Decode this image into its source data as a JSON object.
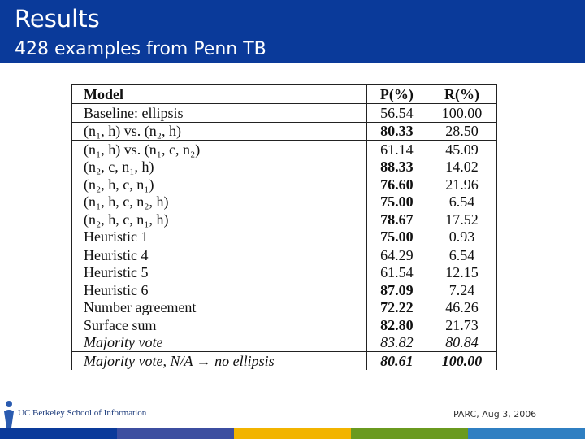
{
  "header": {
    "title": "Results",
    "subtitle": "428 examples from Penn TB"
  },
  "table": {
    "columns": [
      "Model",
      "P(%)",
      "R(%)"
    ],
    "rows": [
      {
        "cells": [
          "Baseline: ellipsis",
          "56.54",
          "100.00"
        ],
        "bold": [],
        "italic": false
      },
      {
        "cells": [
          "(n₁, h) vs. (n₂, h)",
          "80.33",
          "28.50"
        ],
        "bold": [
          1
        ],
        "italic": false
      },
      {
        "cells": [
          "(n₁, h) vs. (n₁, c, n₂)",
          "61.14",
          "45.09"
        ],
        "bold": [],
        "italic": false
      },
      {
        "cells": [
          "(n₂, c, n₁, h)",
          "88.33",
          "14.02"
        ],
        "bold": [
          1
        ],
        "italic": false
      },
      {
        "cells": [
          "(n₂, h, c, n₁)",
          "76.60",
          "21.96"
        ],
        "bold": [
          1
        ],
        "italic": false
      },
      {
        "cells": [
          "(n₁, h, c, n₂, h)",
          "75.00",
          "6.54"
        ],
        "bold": [
          1
        ],
        "italic": false
      },
      {
        "cells": [
          "(n₂, h, c, n₁, h)",
          "78.67",
          "17.52"
        ],
        "bold": [
          1
        ],
        "italic": false
      },
      {
        "cells": [
          "Heuristic 1",
          "75.00",
          "0.93"
        ],
        "bold": [
          1
        ],
        "italic": false
      },
      {
        "cells": [
          "Heuristic 4",
          "64.29",
          "6.54"
        ],
        "bold": [],
        "italic": false
      },
      {
        "cells": [
          "Heuristic 5",
          "61.54",
          "12.15"
        ],
        "bold": [],
        "italic": false
      },
      {
        "cells": [
          "Heuristic 6",
          "87.09",
          "7.24"
        ],
        "bold": [
          1
        ],
        "italic": false
      },
      {
        "cells": [
          "Number agreement",
          "72.22",
          "46.26"
        ],
        "bold": [
          1
        ],
        "italic": false
      },
      {
        "cells": [
          "Surface sum",
          "82.80",
          "21.73"
        ],
        "bold": [
          1
        ],
        "italic": false
      },
      {
        "cells": [
          "Majority vote",
          "83.82",
          "80.84"
        ],
        "bold": [],
        "italic": true
      },
      {
        "cells": [
          "Majority vote, N/A → no ellipsis",
          "80.61",
          "100.00"
        ],
        "bold": [
          1,
          2
        ],
        "italic": true
      }
    ],
    "rules_after": [
      0,
      1,
      7,
      13
    ]
  },
  "footer": {
    "logo": "UC Berkeley School of Information",
    "note": "PARC, Aug 3, 2006"
  }
}
